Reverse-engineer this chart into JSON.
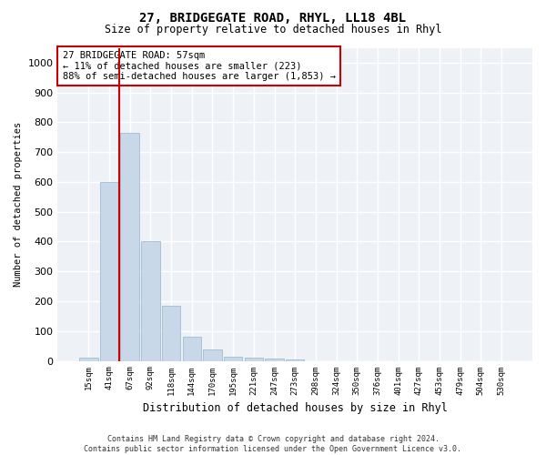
{
  "title": "27, BRIDGEGATE ROAD, RHYL, LL18 4BL",
  "subtitle": "Size of property relative to detached houses in Rhyl",
  "xlabel": "Distribution of detached houses by size in Rhyl",
  "ylabel": "Number of detached properties",
  "bar_color": "#c8d8e8",
  "bar_edgecolor": "#a0bcd0",
  "background_color": "#eef2f7",
  "grid_color": "#ffffff",
  "categories": [
    "15sqm",
    "41sqm",
    "67sqm",
    "92sqm",
    "118sqm",
    "144sqm",
    "170sqm",
    "195sqm",
    "221sqm",
    "247sqm",
    "273sqm",
    "298sqm",
    "324sqm",
    "350sqm",
    "376sqm",
    "401sqm",
    "427sqm",
    "453sqm",
    "479sqm",
    "504sqm",
    "530sqm"
  ],
  "values": [
    10,
    600,
    765,
    400,
    185,
    80,
    38,
    15,
    12,
    8,
    5,
    0,
    0,
    0,
    0,
    0,
    0,
    0,
    0,
    0,
    0
  ],
  "ylim": [
    0,
    1050
  ],
  "yticks": [
    0,
    100,
    200,
    300,
    400,
    500,
    600,
    700,
    800,
    900,
    1000
  ],
  "annotation_text": "27 BRIDGEGATE ROAD: 57sqm\n← 11% of detached houses are smaller (223)\n88% of semi-detached houses are larger (1,853) →",
  "annotation_box_color": "#ffffff",
  "annotation_box_edgecolor": "#cc0000",
  "property_line_color": "#cc0000",
  "property_line_x": 1.5,
  "footer_line1": "Contains HM Land Registry data © Crown copyright and database right 2024.",
  "footer_line2": "Contains public sector information licensed under the Open Government Licence v3.0."
}
